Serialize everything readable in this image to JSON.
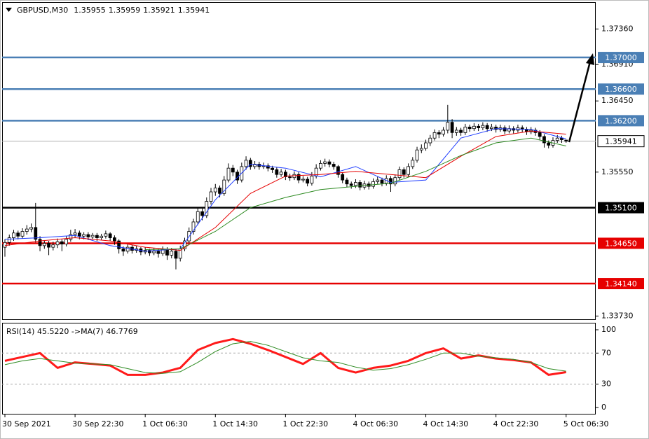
{
  "chart_data": [
    {
      "type": "candlestick",
      "title": "GBPUSD,M30",
      "ylim": [
        1.3368,
        1.377
      ],
      "yticks": [
        {
          "value": 1.3736,
          "label": "1.37360"
        },
        {
          "value": 1.3691,
          "label": "1.36910"
        },
        {
          "value": 1.3645,
          "label": "1.36450"
        },
        {
          "value": 1.3555,
          "label": "1.35550"
        },
        {
          "value": 1.3373,
          "label": "1.33730"
        }
      ],
      "xticks": [
        {
          "value": 0,
          "label": "30 Sep 2021"
        },
        {
          "value": 16,
          "label": "30 Sep 22:30"
        },
        {
          "value": 32,
          "label": "1 Oct 06:30"
        },
        {
          "value": 48,
          "label": "1 Oct 14:30"
        },
        {
          "value": 64,
          "label": "1 Oct 22:30"
        },
        {
          "value": 80,
          "label": "4 Oct 06:30"
        },
        {
          "value": 96,
          "label": "4 Oct 14:30"
        },
        {
          "value": 112,
          "label": "4 Oct 22:30"
        },
        {
          "value": 128,
          "label": "5 Oct 06:30"
        }
      ],
      "levels": [
        {
          "value": 1.37,
          "label": "1.37000",
          "color": "#4a7fb5"
        },
        {
          "value": 1.366,
          "label": "1.36600",
          "color": "#4a7fb5"
        },
        {
          "value": 1.362,
          "label": "1.36200",
          "color": "#4a7fb5"
        },
        {
          "value": 1.351,
          "label": "1.35100",
          "color": "#000000"
        },
        {
          "value": 1.3465,
          "label": "1.34650",
          "color": "#e60000"
        },
        {
          "value": 1.3414,
          "label": "1.34140",
          "color": "#e60000"
        }
      ],
      "candles": [
        [
          1.346,
          1.347,
          1.3448,
          1.3466
        ],
        [
          1.3466,
          1.3476,
          1.3462,
          1.3472
        ],
        [
          1.3472,
          1.3482,
          1.3468,
          1.3478
        ],
        [
          1.3478,
          1.3481,
          1.347,
          1.3474
        ],
        [
          1.3474,
          1.3484,
          1.3471,
          1.348
        ],
        [
          1.348,
          1.3488,
          1.3476,
          1.3483
        ],
        [
          1.3483,
          1.349,
          1.3479,
          1.3485
        ],
        [
          1.3485,
          1.3516,
          1.3466,
          1.347
        ],
        [
          1.347,
          1.3474,
          1.3455,
          1.3462
        ],
        [
          1.3462,
          1.3469,
          1.3458,
          1.3465
        ],
        [
          1.3465,
          1.3468,
          1.345,
          1.346
        ],
        [
          1.346,
          1.3467,
          1.3456,
          1.3463
        ],
        [
          1.3463,
          1.3471,
          1.3459,
          1.3467
        ],
        [
          1.3467,
          1.347,
          1.3455,
          1.3464
        ],
        [
          1.3464,
          1.3474,
          1.3461,
          1.347
        ],
        [
          1.347,
          1.3482,
          1.3467,
          1.3476
        ],
        [
          1.3476,
          1.3483,
          1.3472,
          1.3478
        ],
        [
          1.3478,
          1.3481,
          1.347,
          1.3474
        ],
        [
          1.3474,
          1.3479,
          1.347,
          1.3476
        ],
        [
          1.3476,
          1.3479,
          1.3469,
          1.3473
        ],
        [
          1.3473,
          1.3478,
          1.347,
          1.3475
        ],
        [
          1.3475,
          1.3478,
          1.3468,
          1.3472
        ],
        [
          1.3472,
          1.3477,
          1.3469,
          1.3474
        ],
        [
          1.3474,
          1.3481,
          1.3471,
          1.3477
        ],
        [
          1.3477,
          1.3479,
          1.3468,
          1.3472
        ],
        [
          1.3472,
          1.3475,
          1.3463,
          1.3468
        ],
        [
          1.3468,
          1.347,
          1.3452,
          1.3458
        ],
        [
          1.3458,
          1.3461,
          1.3449,
          1.3455
        ],
        [
          1.3455,
          1.3464,
          1.3452,
          1.346
        ],
        [
          1.346,
          1.3463,
          1.3452,
          1.3456
        ],
        [
          1.3456,
          1.3462,
          1.3453,
          1.3458
        ],
        [
          1.3458,
          1.346,
          1.345,
          1.3454
        ],
        [
          1.3454,
          1.346,
          1.3451,
          1.3456
        ],
        [
          1.3456,
          1.3458,
          1.3449,
          1.3453
        ],
        [
          1.3453,
          1.3459,
          1.345,
          1.3455
        ],
        [
          1.3455,
          1.3458,
          1.3447,
          1.3452
        ],
        [
          1.3452,
          1.3461,
          1.3449,
          1.3457
        ],
        [
          1.3457,
          1.346,
          1.3444,
          1.345
        ],
        [
          1.345,
          1.3459,
          1.3446,
          1.3455
        ],
        [
          1.3455,
          1.3458,
          1.3432,
          1.3446
        ],
        [
          1.3446,
          1.3462,
          1.3442,
          1.3458
        ],
        [
          1.3458,
          1.3472,
          1.3455,
          1.3468
        ],
        [
          1.3468,
          1.3485,
          1.3465,
          1.348
        ],
        [
          1.348,
          1.3496,
          1.3476,
          1.3492
        ],
        [
          1.3492,
          1.351,
          1.3488,
          1.3505
        ],
        [
          1.3505,
          1.3509,
          1.3494,
          1.35
        ],
        [
          1.35,
          1.3523,
          1.3497,
          1.3518
        ],
        [
          1.3518,
          1.3535,
          1.3514,
          1.353
        ],
        [
          1.353,
          1.354,
          1.3525,
          1.3535
        ],
        [
          1.3535,
          1.3538,
          1.3523,
          1.3528
        ],
        [
          1.3528,
          1.355,
          1.3525,
          1.3545
        ],
        [
          1.3545,
          1.3566,
          1.3542,
          1.356
        ],
        [
          1.356,
          1.3564,
          1.355,
          1.3555
        ],
        [
          1.3555,
          1.3558,
          1.354,
          1.3545
        ],
        [
          1.3545,
          1.3567,
          1.3542,
          1.3562
        ],
        [
          1.3562,
          1.3575,
          1.3558,
          1.357
        ],
        [
          1.357,
          1.3573,
          1.3558,
          1.3562
        ],
        [
          1.3562,
          1.3569,
          1.3559,
          1.3565
        ],
        [
          1.3565,
          1.3568,
          1.3558,
          1.3562
        ],
        [
          1.3562,
          1.3567,
          1.3559,
          1.3563
        ],
        [
          1.3563,
          1.3566,
          1.3556,
          1.356
        ],
        [
          1.356,
          1.3563,
          1.3554,
          1.3558
        ],
        [
          1.3558,
          1.3561,
          1.3548,
          1.3552
        ],
        [
          1.3552,
          1.3559,
          1.3549,
          1.3555
        ],
        [
          1.3555,
          1.3558,
          1.3545,
          1.3549
        ],
        [
          1.3549,
          1.3553,
          1.3544,
          1.3548
        ],
        [
          1.3548,
          1.3556,
          1.3545,
          1.3552
        ],
        [
          1.3552,
          1.3555,
          1.3541,
          1.3545
        ],
        [
          1.3545,
          1.355,
          1.3542,
          1.3546
        ],
        [
          1.3546,
          1.3549,
          1.3537,
          1.3541
        ],
        [
          1.3541,
          1.3555,
          1.3538,
          1.355
        ],
        [
          1.355,
          1.3565,
          1.3547,
          1.356
        ],
        [
          1.356,
          1.357,
          1.3557,
          1.3566
        ],
        [
          1.3566,
          1.3572,
          1.3562,
          1.3568
        ],
        [
          1.3568,
          1.3571,
          1.3561,
          1.3565
        ],
        [
          1.3565,
          1.3568,
          1.3558,
          1.3562
        ],
        [
          1.3562,
          1.3564,
          1.3548,
          1.3552
        ],
        [
          1.3552,
          1.3555,
          1.3541,
          1.3545
        ],
        [
          1.3545,
          1.3548,
          1.3536,
          1.354
        ],
        [
          1.354,
          1.3543,
          1.3534,
          1.3538
        ],
        [
          1.3538,
          1.3546,
          1.3535,
          1.3542
        ],
        [
          1.3542,
          1.3545,
          1.3532,
          1.3536
        ],
        [
          1.3536,
          1.3544,
          1.3533,
          1.354
        ],
        [
          1.354,
          1.3543,
          1.3533,
          1.3537
        ],
        [
          1.3537,
          1.3547,
          1.3534,
          1.3543
        ],
        [
          1.3543,
          1.3549,
          1.354,
          1.3545
        ],
        [
          1.3545,
          1.3548,
          1.3537,
          1.3541
        ],
        [
          1.3541,
          1.3551,
          1.3538,
          1.3547
        ],
        [
          1.3547,
          1.355,
          1.353,
          1.354
        ],
        [
          1.354,
          1.3552,
          1.3537,
          1.3548
        ],
        [
          1.3548,
          1.3562,
          1.3545,
          1.3558
        ],
        [
          1.3558,
          1.3561,
          1.3548,
          1.3552
        ],
        [
          1.3552,
          1.3566,
          1.3549,
          1.3562
        ],
        [
          1.3562,
          1.3574,
          1.3559,
          1.357
        ],
        [
          1.357,
          1.3587,
          1.3567,
          1.3583
        ],
        [
          1.3583,
          1.359,
          1.3579,
          1.3585
        ],
        [
          1.3585,
          1.3596,
          1.3582,
          1.3592
        ],
        [
          1.3592,
          1.3602,
          1.3588,
          1.3598
        ],
        [
          1.3598,
          1.3609,
          1.3595,
          1.3605
        ],
        [
          1.3605,
          1.3608,
          1.3598,
          1.3603
        ],
        [
          1.3603,
          1.3612,
          1.36,
          1.3608
        ],
        [
          1.3608,
          1.364,
          1.3604,
          1.3618
        ],
        [
          1.3618,
          1.3622,
          1.3598,
          1.3605
        ],
        [
          1.3605,
          1.3612,
          1.3601,
          1.3608
        ],
        [
          1.3608,
          1.3611,
          1.3601,
          1.3605
        ],
        [
          1.3605,
          1.3616,
          1.3602,
          1.3612
        ],
        [
          1.3612,
          1.3615,
          1.3606,
          1.361
        ],
        [
          1.361,
          1.3617,
          1.3607,
          1.3613
        ],
        [
          1.3613,
          1.3616,
          1.3607,
          1.3611
        ],
        [
          1.3611,
          1.3618,
          1.3608,
          1.3614
        ],
        [
          1.3614,
          1.3617,
          1.3606,
          1.361
        ],
        [
          1.361,
          1.3616,
          1.3607,
          1.3612
        ],
        [
          1.3612,
          1.3615,
          1.3605,
          1.3609
        ],
        [
          1.3609,
          1.3615,
          1.3606,
          1.3611
        ],
        [
          1.3611,
          1.3614,
          1.3603,
          1.3607
        ],
        [
          1.3607,
          1.3614,
          1.3604,
          1.361
        ],
        [
          1.361,
          1.3613,
          1.3604,
          1.3608
        ],
        [
          1.3608,
          1.3615,
          1.3605,
          1.3611
        ],
        [
          1.3611,
          1.3614,
          1.3605,
          1.3609
        ],
        [
          1.3609,
          1.3612,
          1.3602,
          1.3606
        ],
        [
          1.3606,
          1.3612,
          1.3603,
          1.3608
        ],
        [
          1.3608,
          1.3611,
          1.3601,
          1.3605
        ],
        [
          1.3605,
          1.3608,
          1.3596,
          1.36
        ],
        [
          1.36,
          1.3603,
          1.3586,
          1.3592
        ],
        [
          1.3592,
          1.3595,
          1.3585,
          1.3589
        ],
        [
          1.3589,
          1.3599,
          1.3586,
          1.3595
        ],
        [
          1.3595,
          1.3602,
          1.3592,
          1.3598
        ],
        [
          1.3598,
          1.3601,
          1.3592,
          1.3596
        ],
        [
          1.35955,
          1.35959,
          1.35921,
          1.35941
        ]
      ],
      "ma_x": [
        0,
        8,
        16,
        24,
        32,
        40,
        48,
        56,
        64,
        72,
        80,
        88,
        96,
        104,
        112,
        120,
        128
      ],
      "lines": [
        {
          "color": "#1e3cff",
          "values": [
            1.347,
            1.3472,
            1.3475,
            1.3462,
            1.3455,
            1.3458,
            1.352,
            1.3565,
            1.356,
            1.3549,
            1.3562,
            1.3542,
            1.3545,
            1.3598,
            1.361,
            1.3609,
            1.3597
          ]
        },
        {
          "color": "#e60000",
          "values": [
            1.3462,
            1.3468,
            1.3472,
            1.3468,
            1.346,
            1.3456,
            1.3485,
            1.3528,
            1.355,
            1.3552,
            1.3556,
            1.3552,
            1.3548,
            1.3575,
            1.36,
            1.3607,
            1.3603
          ]
        },
        {
          "color": "#2e8b22",
          "values": [
            null,
            null,
            null,
            null,
            1.3457,
            1.3458,
            1.348,
            1.351,
            1.3523,
            1.3533,
            1.3537,
            1.3541,
            1.3556,
            1.3576,
            1.3592,
            1.3598,
            1.3588
          ]
        }
      ]
    },
    {
      "type": "line",
      "title": "RSI(14) 45.5220  ->MA(7) 46.7769",
      "ylim": [
        -9,
        109
      ],
      "yticks": [
        100,
        70,
        30,
        0
      ],
      "reference_lines": [
        70,
        30
      ],
      "x": [
        0,
        4,
        8,
        12,
        16,
        20,
        24,
        28,
        32,
        36,
        40,
        44,
        48,
        52,
        56,
        60,
        64,
        68,
        72,
        76,
        80,
        84,
        88,
        92,
        96,
        100,
        104,
        108,
        112,
        116,
        120,
        124,
        128
      ],
      "series": [
        {
          "color": "#ff1a1a",
          "width": 3,
          "values": [
            60,
            65,
            70,
            51,
            58,
            56,
            54,
            42,
            42,
            45,
            51,
            74,
            83,
            88,
            82,
            74,
            65,
            56,
            70,
            51,
            45,
            51,
            54,
            60,
            70,
            76,
            63,
            67,
            63,
            61,
            58,
            42,
            45.522
          ]
        },
        {
          "color": "#2e8b22",
          "width": 1,
          "values": [
            55,
            60,
            63,
            60,
            57,
            56,
            55,
            50,
            45,
            44,
            46,
            58,
            72,
            82,
            85,
            80,
            72,
            64,
            60,
            58,
            52,
            48,
            50,
            55,
            62,
            70,
            70,
            66,
            64,
            62,
            58,
            50,
            46.7769
          ]
        }
      ]
    }
  ]
}
